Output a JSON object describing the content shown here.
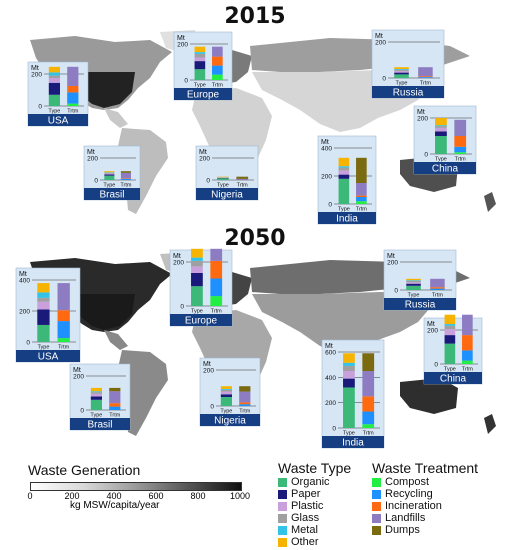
{
  "titles": {
    "top": "2015",
    "bottom": "2050"
  },
  "inset_axis": {
    "unit": "Mt",
    "x_labels": [
      "Type",
      "Trtm"
    ]
  },
  "waste_type": {
    "title": "Waste Type",
    "items": [
      {
        "label": "Organic",
        "color": "#3cb878"
      },
      {
        "label": "Paper",
        "color": "#1a1a7a"
      },
      {
        "label": "Plastic",
        "color": "#c9a0dc"
      },
      {
        "label": "Glass",
        "color": "#a0a0a0"
      },
      {
        "label": "Metal",
        "color": "#33c3e8"
      },
      {
        "label": "Other",
        "color": "#f6b400"
      }
    ]
  },
  "waste_treatment": {
    "title": "Waste Treatment",
    "items": [
      {
        "label": "Compost",
        "color": "#22ee44"
      },
      {
        "label": "Recycling",
        "color": "#1e90ff"
      },
      {
        "label": "Incineration",
        "color": "#ff6a10"
      },
      {
        "label": "Landfills",
        "color": "#8e7cc3"
      },
      {
        "label": "Dumps",
        "color": "#7a6a10"
      }
    ]
  },
  "generation_scale": {
    "title": "Waste Generation",
    "ticks": [
      "0",
      "200",
      "400",
      "600",
      "800",
      "1000"
    ],
    "unit": "kg MSW/capita/year",
    "colors": [
      "#ffffff",
      "#111111"
    ]
  },
  "chart_data": [
    {
      "type": "bar",
      "title": "USA",
      "year": "2015",
      "categories": [
        "Type",
        "Trtm"
      ],
      "ylim": [
        0,
        200
      ],
      "yticks": [
        "0",
        "200"
      ],
      "type_stack": {
        "Organic": 70,
        "Paper": 75,
        "Plastic": 30,
        "Glass": 15,
        "Metal": 20,
        "Other": 35
      },
      "treatment_stack": {
        "Compost": 15,
        "Recycling": 70,
        "Incineration": 40,
        "Landfills": 120
      }
    },
    {
      "type": "bar",
      "title": "Europe",
      "year": "2015",
      "categories": [
        "Type",
        "Trtm"
      ],
      "ylim": [
        0,
        200
      ],
      "yticks": [
        "0",
        "200"
      ],
      "type_stack": {
        "Organic": 60,
        "Paper": 45,
        "Plastic": 20,
        "Glass": 20,
        "Metal": 10,
        "Other": 30
      },
      "treatment_stack": {
        "Compost": 30,
        "Recycling": 50,
        "Incineration": 50,
        "Landfills": 55
      }
    },
    {
      "type": "bar",
      "title": "Russia",
      "year": "2015",
      "categories": [
        "Type",
        "Trtm"
      ],
      "ylim": [
        0,
        200
      ],
      "yticks": [
        "0",
        "200"
      ],
      "type_stack": {
        "Organic": 20,
        "Paper": 10,
        "Plastic": 8,
        "Glass": 8,
        "Metal": 4,
        "Other": 10
      },
      "treatment_stack": {
        "Recycling": 5,
        "Incineration": 5,
        "Landfills": 50
      }
    },
    {
      "type": "bar",
      "title": "China",
      "year": "2015",
      "categories": [
        "Type",
        "Trtm"
      ],
      "ylim": [
        0,
        200
      ],
      "yticks": [
        "0",
        "200"
      ],
      "type_stack": {
        "Organic": 100,
        "Paper": 25,
        "Plastic": 20,
        "Glass": 10,
        "Metal": 5,
        "Other": 40
      },
      "treatment_stack": {
        "Compost": 10,
        "Recycling": 30,
        "Incineration": 60,
        "Landfills": 90
      }
    },
    {
      "type": "bar",
      "title": "Brasil",
      "year": "2015",
      "categories": [
        "Type",
        "Trtm"
      ],
      "ylim": [
        0,
        200
      ],
      "yticks": [
        "0",
        "200"
      ],
      "type_stack": {
        "Organic": 40,
        "Paper": 10,
        "Plastic": 10,
        "Glass": 5,
        "Metal": 5,
        "Other": 10
      },
      "treatment_stack": {
        "Recycling": 10,
        "Incineration": 5,
        "Landfills": 50,
        "Dumps": 15
      }
    },
    {
      "type": "bar",
      "title": "Nigeria",
      "year": "2015",
      "categories": [
        "Type",
        "Trtm"
      ],
      "ylim": [
        0,
        200
      ],
      "yticks": [
        "0",
        "200"
      ],
      "type_stack": {
        "Organic": 15,
        "Paper": 3,
        "Plastic": 3,
        "Glass": 2,
        "Metal": 2,
        "Other": 5
      },
      "treatment_stack": {
        "Landfills": 10,
        "Dumps": 20
      }
    },
    {
      "type": "bar",
      "title": "India",
      "year": "2015",
      "categories": [
        "Type",
        "Trtm"
      ],
      "ylim": [
        0,
        400
      ],
      "yticks": [
        "0",
        "200",
        "400"
      ],
      "type_stack": {
        "Organic": 180,
        "Paper": 30,
        "Plastic": 30,
        "Glass": 20,
        "Metal": 10,
        "Other": 60
      },
      "treatment_stack": {
        "Compost": 20,
        "Recycling": 30,
        "Incineration": 10,
        "Landfills": 90,
        "Dumps": 180
      }
    },
    {
      "type": "bar",
      "title": "USA",
      "year": "2050",
      "categories": [
        "Type",
        "Trtm"
      ],
      "ylim": [
        0,
        400
      ],
      "yticks": [
        "0",
        "200",
        "400"
      ],
      "type_stack": {
        "Organic": 110,
        "Paper": 100,
        "Plastic": 50,
        "Glass": 25,
        "Metal": 35,
        "Other": 60
      },
      "treatment_stack": {
        "Compost": 25,
        "Recycling": 110,
        "Incineration": 70,
        "Landfills": 175
      }
    },
    {
      "type": "bar",
      "title": "Europe",
      "year": "2050",
      "categories": [
        "Type",
        "Trtm"
      ],
      "ylim": [
        0,
        200
      ],
      "yticks": [
        "0",
        "200"
      ],
      "type_stack": {
        "Organic": 90,
        "Paper": 60,
        "Plastic": 30,
        "Glass": 25,
        "Metal": 15,
        "Other": 40
      },
      "treatment_stack": {
        "Compost": 45,
        "Recycling": 80,
        "Incineration": 80,
        "Landfills": 55
      }
    },
    {
      "type": "bar",
      "title": "Russia",
      "year": "2050",
      "categories": [
        "Type",
        "Trtm"
      ],
      "ylim": [
        0,
        200
      ],
      "yticks": [
        "0",
        "200"
      ],
      "type_stack": {
        "Organic": 30,
        "Paper": 15,
        "Plastic": 10,
        "Glass": 10,
        "Metal": 5,
        "Other": 10
      },
      "treatment_stack": {
        "Recycling": 10,
        "Incineration": 10,
        "Landfills": 60
      }
    },
    {
      "type": "bar",
      "title": "China",
      "year": "2050",
      "categories": [
        "Type",
        "Trtm"
      ],
      "ylim": [
        0,
        200
      ],
      "yticks": [
        "0",
        "200"
      ],
      "type_stack": {
        "Organic": 120,
        "Paper": 50,
        "Plastic": 35,
        "Glass": 20,
        "Metal": 10,
        "Other": 55
      },
      "treatment_stack": {
        "Compost": 20,
        "Recycling": 60,
        "Incineration": 90,
        "Landfills": 120
      }
    },
    {
      "type": "bar",
      "title": "Brasil",
      "year": "2050",
      "categories": [
        "Type",
        "Trtm"
      ],
      "ylim": [
        0,
        200
      ],
      "yticks": [
        "0",
        "200"
      ],
      "type_stack": {
        "Organic": 60,
        "Paper": 20,
        "Plastic": 15,
        "Glass": 10,
        "Metal": 5,
        "Other": 20
      },
      "treatment_stack": {
        "Recycling": 20,
        "Incineration": 20,
        "Landfills": 70,
        "Dumps": 20
      }
    },
    {
      "type": "bar",
      "title": "Nigeria",
      "year": "2050",
      "categories": [
        "Type",
        "Trtm"
      ],
      "ylim": [
        0,
        200
      ],
      "yticks": [
        "0",
        "200"
      ],
      "type_stack": {
        "Organic": 50,
        "Paper": 15,
        "Plastic": 15,
        "Glass": 10,
        "Metal": 5,
        "Other": 15
      },
      "treatment_stack": {
        "Recycling": 10,
        "Incineration": 10,
        "Landfills": 60,
        "Dumps": 30
      }
    },
    {
      "type": "bar",
      "title": "India",
      "year": "2050",
      "categories": [
        "Type",
        "Trtm"
      ],
      "ylim": [
        0,
        600
      ],
      "yticks": [
        "0",
        "200",
        "400",
        "600"
      ],
      "type_stack": {
        "Organic": 320,
        "Paper": 70,
        "Plastic": 60,
        "Glass": 40,
        "Metal": 25,
        "Other": 75
      },
      "treatment_stack": {
        "Compost": 30,
        "Recycling": 100,
        "Incineration": 120,
        "Landfills": 200,
        "Dumps": 140
      }
    }
  ]
}
